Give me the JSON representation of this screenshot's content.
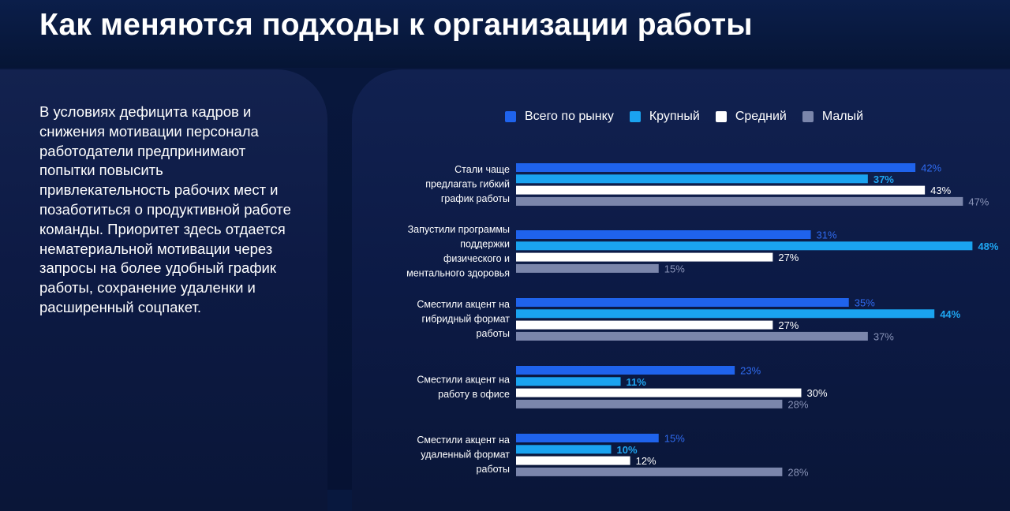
{
  "header": {
    "title": "Как меняются подходы к организации работы"
  },
  "description": "В условиях дефицита кадров и снижения мотивации персонала работодатели предпринимают попытки повысить привлекательность рабочих мест и позаботиться о продуктивной работе команды. Приоритет здесь отдается нематериальной мотивации через запросы на более удобный график работы, сохранение удаленки и расширенный соцпакет.",
  "chart_data": {
    "type": "bar",
    "orientation": "horizontal",
    "value_suffix": "%",
    "categories": [
      "Стали чаще предлагать гибкий график работы",
      "Запустили программы поддержки физического и ментального здоровья",
      "Сместили акцент на гибридный формат работы",
      "Сместили акцент на работу в офисе",
      "Сместили акцент на удаленный формат работы"
    ],
    "category_lines": [
      [
        "Стали чаще",
        "предлагать гибкий",
        "график работы"
      ],
      [
        "Запустили программы",
        "поддержки",
        "физического и",
        "ментального здоровья"
      ],
      [
        "Сместили акцент на",
        "гибридный формат",
        "работы"
      ],
      [
        "Сместили акцент на",
        "работу в офисе"
      ],
      [
        "Сместили акцент на",
        "удаленный формат",
        "работы"
      ]
    ],
    "series": [
      {
        "name": "Всего по рынку",
        "color": "#1f63ec",
        "label_color": "#2f6bf0",
        "values": [
          42,
          31,
          35,
          23,
          15
        ]
      },
      {
        "name": "Крупный",
        "color": "#1aa3f0",
        "label_color": "#1fa6f2",
        "values": [
          37,
          48,
          44,
          11,
          10
        ]
      },
      {
        "name": "Средний",
        "color": "#ffffff",
        "label_color": "#ffffff",
        "values": [
          43,
          27,
          27,
          30,
          12
        ]
      },
      {
        "name": "Малый",
        "color": "#7b86ab",
        "label_color": "#8a94b8",
        "values": [
          47,
          15,
          37,
          28,
          28
        ]
      }
    ],
    "legend_position": "top",
    "grid": false
  }
}
